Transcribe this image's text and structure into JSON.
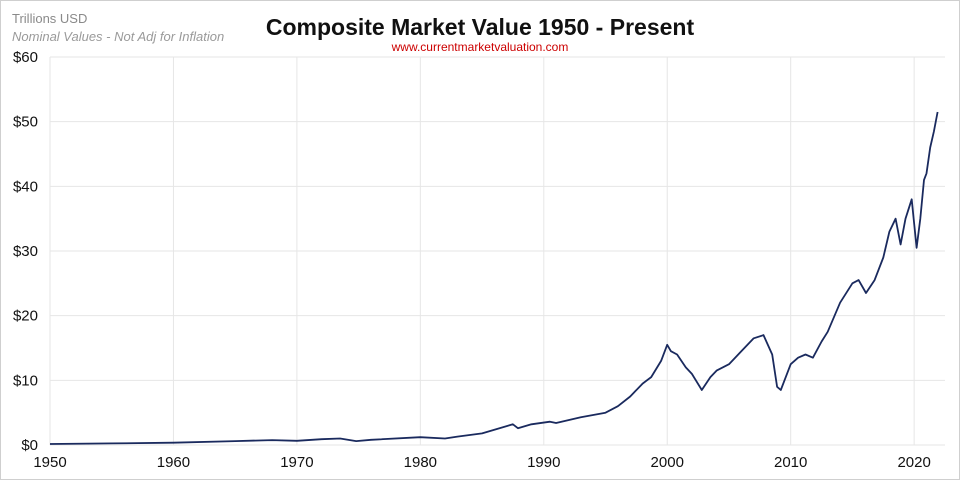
{
  "header": {
    "units_label": "Trillions USD",
    "note": "Nominal Values - Not Adj for Inflation",
    "title": "Composite Market Value 1950 - Present",
    "source": "www.currentmarketvaluation.com"
  },
  "colors": {
    "line": "#1a2a5e",
    "grid": "#e6e6e6",
    "source_text": "#cc0000"
  },
  "chart_data": {
    "type": "line",
    "title": "Composite Market Value 1950 - Present",
    "ylabel": "Trillions USD",
    "xlim": [
      1950,
      2022.5
    ],
    "ylim": [
      0,
      60
    ],
    "x_ticks": [
      1950,
      1960,
      1970,
      1980,
      1990,
      2000,
      2010,
      2020
    ],
    "y_ticks": [
      0,
      10,
      20,
      30,
      40,
      50,
      60
    ],
    "y_tick_labels": [
      "$0",
      "$10",
      "$20",
      "$30",
      "$40",
      "$50",
      "$60"
    ],
    "grid": true,
    "legend": "none",
    "series": [
      {
        "x": [
          1950,
          1955,
          1960,
          1965,
          1968,
          1970,
          1972,
          1973.5,
          1974.8,
          1976,
          1980,
          1982,
          1983,
          1985,
          1987.5,
          1987.9,
          1989,
          1990.5,
          1991,
          1993,
          1995,
          1996,
          1997,
          1998,
          1998.7,
          1999.5,
          2000,
          2000.3,
          2000.8,
          2001.5,
          2002,
          2002.8,
          2003.5,
          2004,
          2005,
          2006,
          2007,
          2007.8,
          2008.5,
          2008.9,
          2009.2,
          2010,
          2010.6,
          2011.2,
          2011.8,
          2012.5,
          2013,
          2014,
          2015,
          2015.5,
          2016.1,
          2016.8,
          2017.5,
          2018,
          2018.5,
          2018.9,
          2019.3,
          2019.8,
          2020.2,
          2020.5,
          2020.8,
          2021,
          2021.3,
          2021.6,
          2021.9
        ],
        "y": [
          0.15,
          0.25,
          0.35,
          0.6,
          0.75,
          0.65,
          0.9,
          1.0,
          0.6,
          0.8,
          1.2,
          1.0,
          1.3,
          1.8,
          3.2,
          2.6,
          3.2,
          3.6,
          3.4,
          4.3,
          5.0,
          6.0,
          7.5,
          9.5,
          10.5,
          13.0,
          15.5,
          14.5,
          14.0,
          12.0,
          11.0,
          8.5,
          10.5,
          11.5,
          12.5,
          14.5,
          16.5,
          17.0,
          14.0,
          9.0,
          8.5,
          12.5,
          13.5,
          14.0,
          13.5,
          16.0,
          17.5,
          22.0,
          25.0,
          25.5,
          23.5,
          25.5,
          29.0,
          33.0,
          35.0,
          31.0,
          35.0,
          38.0,
          30.5,
          35.0,
          41.0,
          42.0,
          46.0,
          48.5,
          51.5
        ]
      }
    ]
  }
}
